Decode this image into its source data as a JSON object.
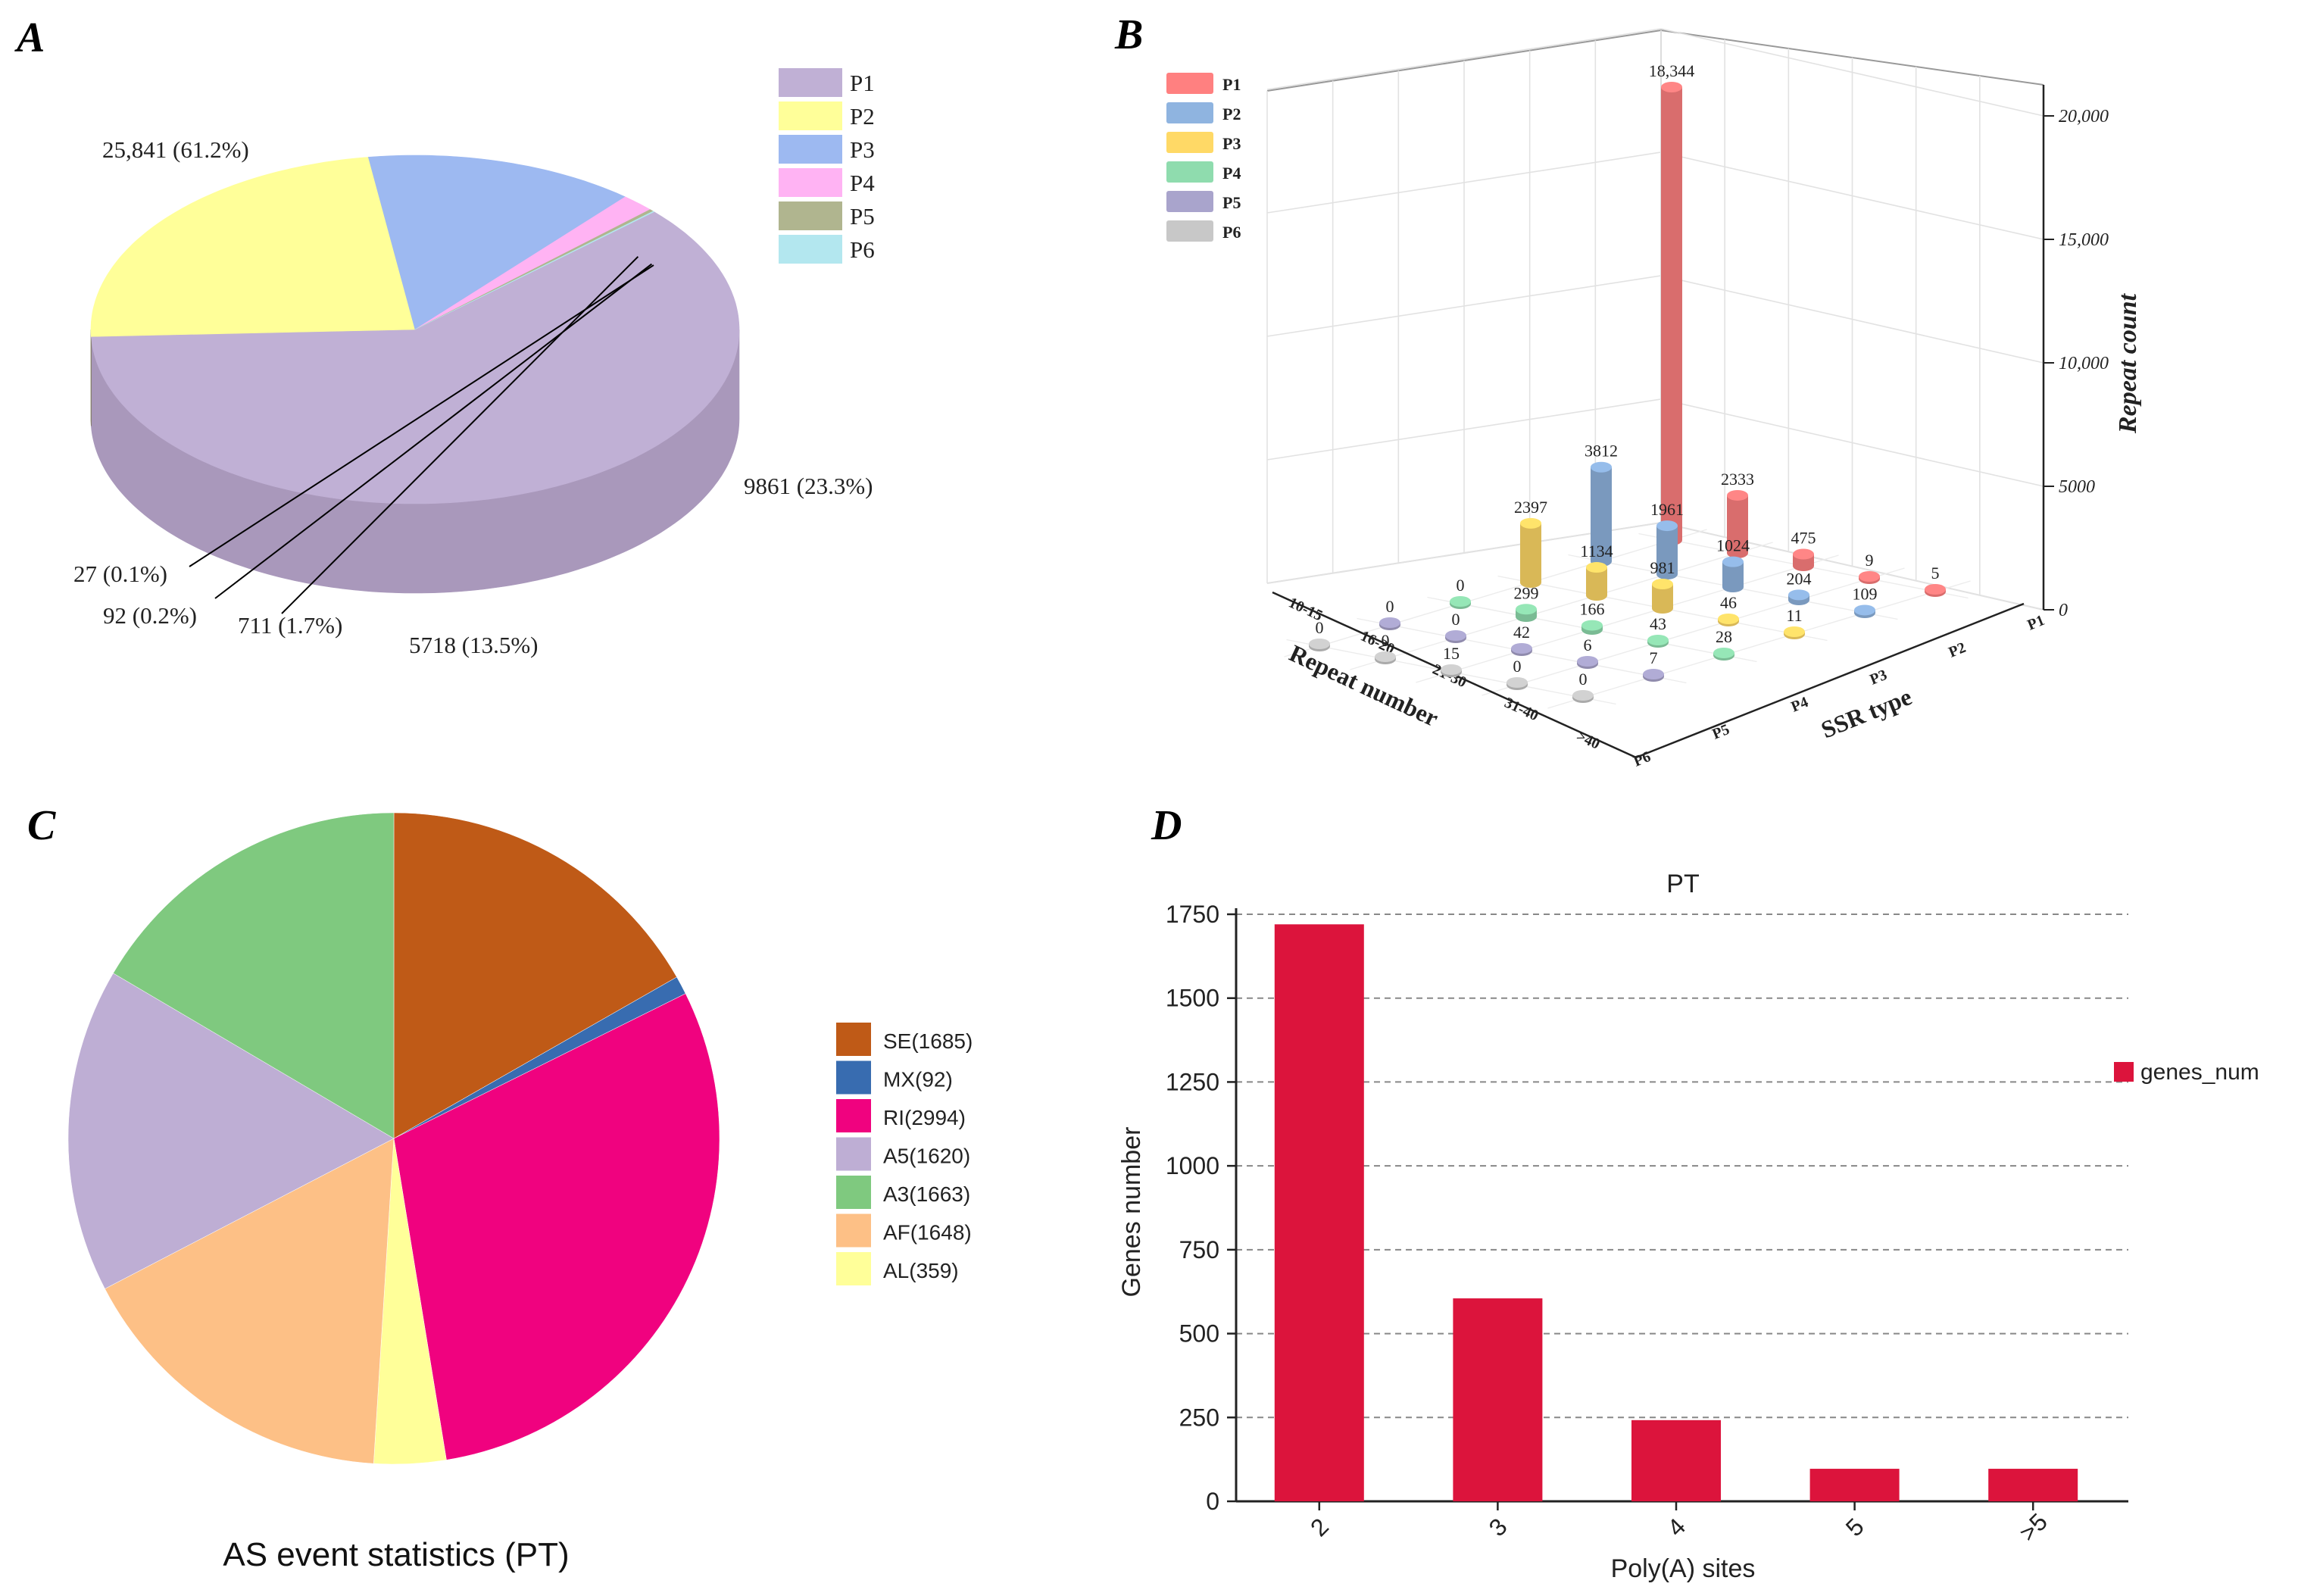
{
  "panels": {
    "A": "A",
    "B": "B",
    "C": "C",
    "D": "D"
  },
  "chart_data": [
    {
      "id": "A",
      "type": "pie",
      "style": "3d",
      "title": "",
      "labels": [
        "P1",
        "P2",
        "P3",
        "P4",
        "P5",
        "P6"
      ],
      "values": [
        25841,
        9861,
        5718,
        711,
        92,
        27
      ],
      "value_labels": [
        "25,841 (61.2%)",
        "9861 (23.3%)",
        "5718 (13.5%)",
        "711 (1.7%)",
        "92 (0.2%)",
        "27 (0.1%)"
      ],
      "colors": [
        "#c0b0d5",
        "#ffff99",
        "#9db9f1",
        "#ffb3f3",
        "#b0b58f",
        "#b3e7ef"
      ],
      "side_colors": [
        "#a998bb",
        "#6d6c3e",
        "#47597c",
        "#9a6fa0",
        "#6e714f",
        "#7aa9b2"
      ],
      "legend": "top-right"
    },
    {
      "id": "B",
      "type": "bar",
      "style": "3d-cylinder",
      "title": "",
      "xlabel": "SSR type",
      "ylabel": "Repeat number",
      "zlabel": "Repeat count",
      "ssr_types": [
        "P1",
        "P2",
        "P3",
        "P4",
        "P5",
        "P6"
      ],
      "repeat_bins": [
        "10-15",
        "16-20",
        "21-30",
        "31-40",
        ">40"
      ],
      "zticks": [
        "0",
        "5000",
        "10,000",
        "15,000",
        "20,000"
      ],
      "zlim": [
        0,
        20000
      ],
      "series": [
        {
          "name": "P1",
          "color": "#ff8080",
          "values": [
            18344,
            2333,
            475,
            9,
            5
          ],
          "labels": [
            "18,344",
            "2333",
            "475",
            "9",
            "5"
          ]
        },
        {
          "name": "P2",
          "color": "#8fb4e0",
          "values": [
            3812,
            1961,
            1024,
            204,
            109
          ],
          "labels": [
            "3812",
            "1961",
            "1024",
            "204",
            "109"
          ]
        },
        {
          "name": "P3",
          "color": "#ffd966",
          "values": [
            2397,
            1134,
            981,
            46,
            11
          ],
          "labels": [
            "2397",
            "1134",
            "981",
            "46",
            "11"
          ]
        },
        {
          "name": "P4",
          "color": "#8fdcae",
          "values": [
            0,
            299,
            166,
            43,
            28
          ],
          "labels": [
            "0",
            "299",
            "166",
            "43",
            "28"
          ]
        },
        {
          "name": "P5",
          "color": "#a9a4cc",
          "values": [
            0,
            0,
            42,
            6,
            7
          ],
          "labels": [
            "0",
            "0",
            "42",
            "6",
            "7"
          ]
        },
        {
          "name": "P6",
          "color": "#c8c8c8",
          "values": [
            0,
            0,
            15,
            0,
            0
          ],
          "labels": [
            "0",
            "0",
            "15",
            "0",
            "0"
          ]
        }
      ],
      "legend": "top-left"
    },
    {
      "id": "C",
      "type": "pie",
      "title": "AS event statistics (PT)",
      "labels": [
        "SE(1685)",
        "MX(92)",
        "RI(2994)",
        "AL(359)",
        "AF(1648)",
        "A5(1620)",
        "A3(1663)"
      ],
      "values": [
        1685,
        92,
        2994,
        359,
        1648,
        1620,
        1663
      ],
      "colors": [
        "#bf5a17",
        "#386cb0",
        "#f0027f",
        "#ffff99",
        "#fdc086",
        "#beaed4",
        "#7fc97f"
      ],
      "legend_order": [
        "SE(1685)",
        "MX(92)",
        "RI(2994)",
        "A5(1620)",
        "A3(1663)",
        "AF(1648)",
        "AL(359)"
      ],
      "legend_colors": [
        "#bf5a17",
        "#386cb0",
        "#f0027f",
        "#beaed4",
        "#7fc97f",
        "#fdc086",
        "#ffff99"
      ],
      "legend": "right"
    },
    {
      "id": "D",
      "type": "bar",
      "title": "PT",
      "xlabel": "Poly(A) sites",
      "ylabel": "Genes number",
      "categories": [
        "2",
        "3",
        "4",
        "5",
        ">5"
      ],
      "series": [
        {
          "name": "genes_num",
          "values": [
            1720,
            605,
            242,
            97,
            97
          ]
        }
      ],
      "yticks": [
        "0",
        "250",
        "500",
        "750",
        "1000",
        "1250",
        "1500",
        "1750"
      ],
      "ylim": [
        0,
        1750
      ],
      "grid": true,
      "bar_color": "#dc143c",
      "legend": "right"
    }
  ]
}
